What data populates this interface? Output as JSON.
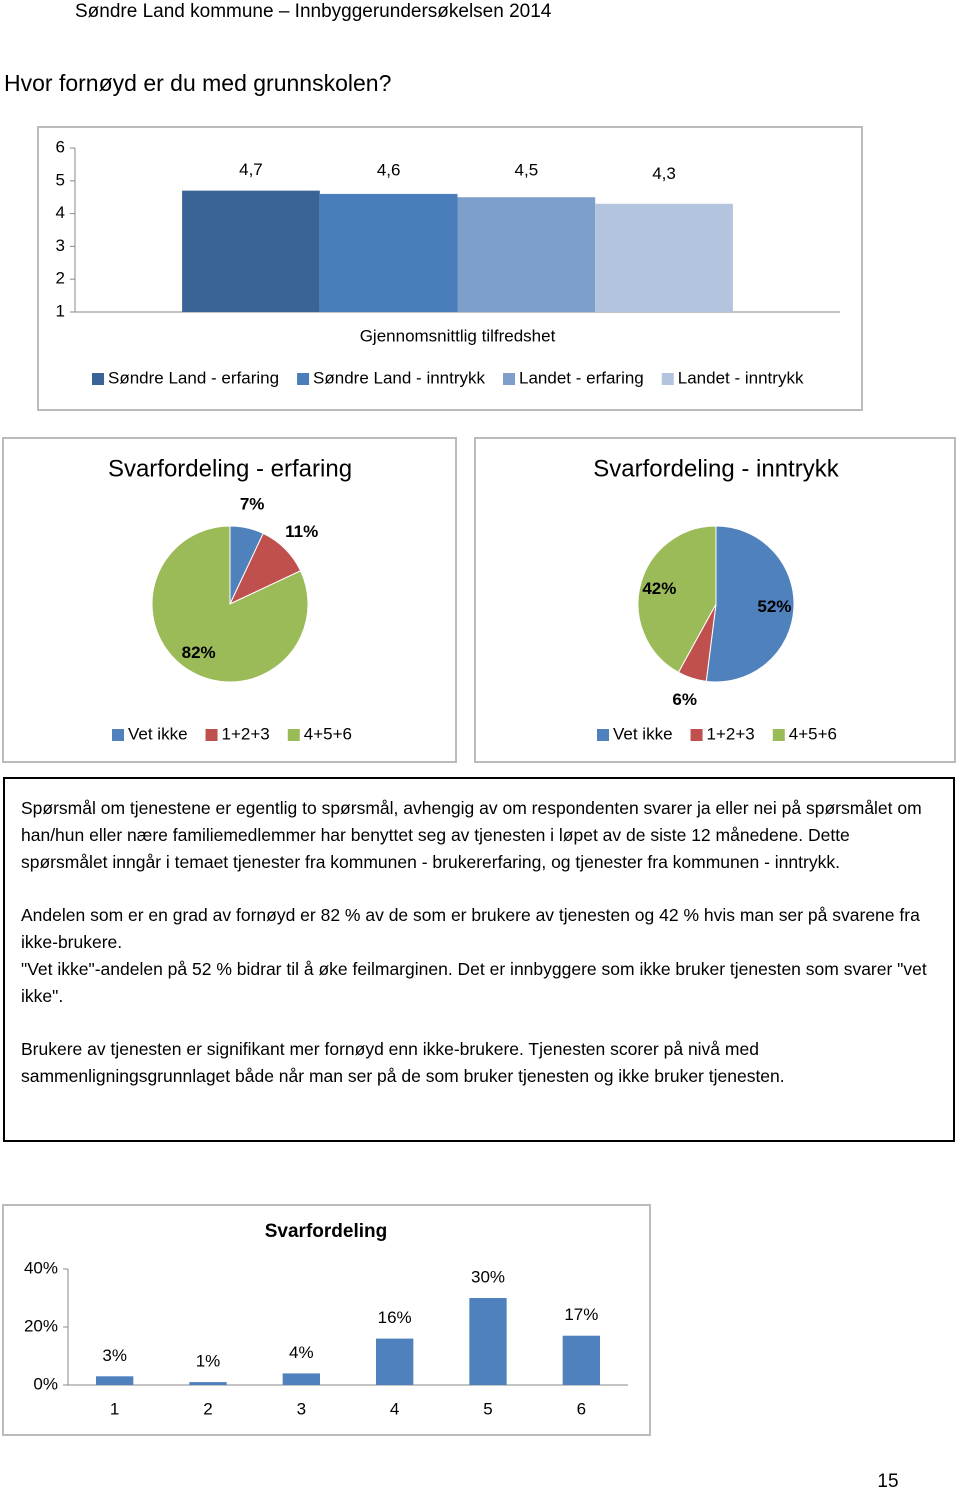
{
  "header": "Søndre Land kommune – Innbyggerundersøkelsen 2014",
  "question": "Hvor fornøyd er du med grunnskolen?",
  "chart_data": [
    {
      "type": "bar",
      "categories": [
        "Gjennomsnittlig tilfredshet"
      ],
      "series": [
        {
          "name": "Søndre Land - erfaring",
          "color": "#3a6396",
          "values": [
            4.7
          ],
          "value_labels": [
            "4,7"
          ]
        },
        {
          "name": "Søndre Land - inntrykk",
          "color": "#4a7ebb",
          "values": [
            4.6
          ],
          "value_labels": [
            "4,6"
          ]
        },
        {
          "name": "Landet - erfaring",
          "color": "#7f9fcb",
          "values": [
            4.5
          ],
          "value_labels": [
            "4,5"
          ]
        },
        {
          "name": "Landet - inntrykk",
          "color": "#b3c4de",
          "values": [
            4.3
          ],
          "value_labels": [
            "4,3"
          ]
        }
      ],
      "ylim": [
        1,
        6
      ],
      "yticks": [
        1,
        2,
        3,
        4,
        5,
        6
      ],
      "grid": false,
      "legend": "bottom"
    },
    {
      "type": "pie",
      "title": "Svarfordeling - erfaring",
      "categories": [
        "Vet ikke",
        "1+2+3",
        "4+5+6"
      ],
      "values": [
        7,
        11,
        82
      ],
      "value_labels": [
        "7%",
        "11%",
        "82%"
      ],
      "colors": [
        "#4f81bd",
        "#c0504d",
        "#9bbb59"
      ],
      "legend": "bottom"
    },
    {
      "type": "pie",
      "title": "Svarfordeling - inntrykk",
      "categories": [
        "Vet ikke",
        "1+2+3",
        "4+5+6"
      ],
      "values": [
        52,
        6,
        42
      ],
      "value_labels": [
        "52%",
        "6%",
        "42%"
      ],
      "colors": [
        "#4f81bd",
        "#c0504d",
        "#9bbb59"
      ],
      "legend": "bottom"
    },
    {
      "type": "bar",
      "title": "Svarfordeling",
      "categories": [
        "1",
        "2",
        "3",
        "4",
        "5",
        "6"
      ],
      "values": [
        3,
        1,
        4,
        16,
        30,
        17
      ],
      "value_labels": [
        "3%",
        "1%",
        "4%",
        "16%",
        "30%",
        "17%"
      ],
      "color": "#4f81bd",
      "ylim": [
        0,
        40
      ],
      "yticks": [
        {
          "value": 0,
          "label": "0%"
        },
        {
          "value": 20,
          "label": "20%"
        },
        {
          "value": 40,
          "label": "40%"
        }
      ],
      "grid": false
    }
  ],
  "text_box": {
    "paragraphs": [
      "Spørsmål om tjenestene er egentlig to spørsmål, avhengig av om respondenten svarer ja eller nei på spørsmålet om han/hun eller nære familiemedlemmer har benyttet seg av tjenesten i løpet av de siste 12 månedene. Dette spørsmålet inngår i temaet tjenester fra kommunen - brukererfaring, og tjenester fra kommunen - inntrykk.",
      "Andelen som er en grad av fornøyd er 82 % av de som er brukere av tjenesten og 42 % hvis man ser på svarene fra ikke-brukere.",
      "\"Vet ikke\"-andelen på 52 % bidrar til å øke feilmarginen. Det er innbyggere som ikke bruker tjenesten som svarer \"vet ikke\".",
      "Brukere av tjenesten er signifikant mer fornøyd enn ikke-brukere. Tjenesten scorer på nivå med sammenligningsgrunnlaget både når man ser på de som bruker tjenesten og ikke bruker tjenesten."
    ]
  },
  "page_number": "15"
}
